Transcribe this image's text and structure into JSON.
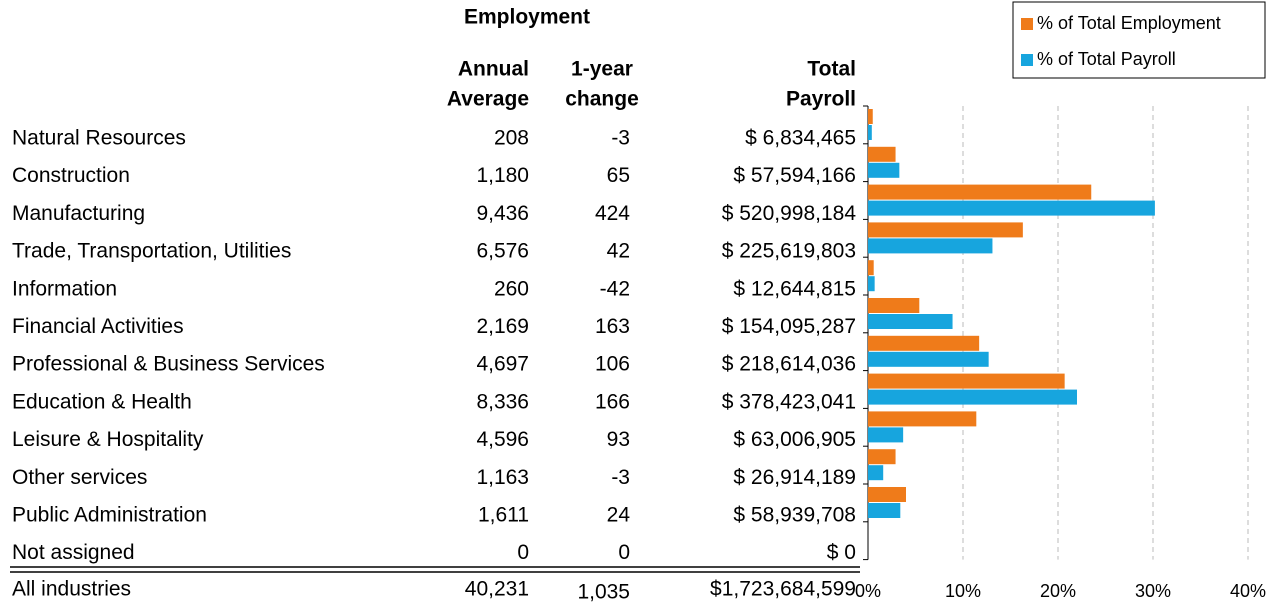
{
  "table": {
    "group_header": "Employment",
    "headers": [
      [
        "Annual",
        "Average"
      ],
      [
        "1-year",
        "change"
      ],
      [
        "Total",
        "Payroll"
      ]
    ],
    "rows": [
      [
        "Natural Resources",
        "208",
        "-3",
        "$ 6,834,465"
      ],
      [
        "Construction",
        "1,180",
        "65",
        "$ 57,594,166"
      ],
      [
        "Manufacturing",
        "9,436",
        "424",
        "$ 520,998,184"
      ],
      [
        "Trade, Transportation, Utilities",
        "6,576",
        "42",
        "$ 225,619,803"
      ],
      [
        "Information",
        "260",
        "-42",
        "$ 12,644,815"
      ],
      [
        "Financial Activities",
        "2,169",
        "163",
        "$ 154,095,287"
      ],
      [
        "Professional & Business Services",
        "4,697",
        "106",
        "$ 218,614,036"
      ],
      [
        "Education & Health",
        "8,336",
        "166",
        "$ 378,423,041"
      ],
      [
        "Leisure & Hospitality",
        "4,596",
        "93",
        "$ 63,006,905"
      ],
      [
        "Other services",
        "1,163",
        "-3",
        "$ 26,914,189"
      ],
      [
        "Public Administration",
        "1,611",
        "24",
        "$ 58,939,708"
      ],
      [
        "Not assigned",
        "0",
        "0",
        "$ 0"
      ]
    ],
    "total": [
      "All industries",
      "40,231",
      "1,035",
      "$1,723,684,599"
    ]
  },
  "chart_data": {
    "type": "bar",
    "orientation": "horizontal",
    "series": [
      {
        "name": "% of Total Employment",
        "color": "#ef7b1a",
        "values": [
          0.5,
          2.9,
          23.5,
          16.3,
          0.6,
          5.4,
          11.7,
          20.7,
          11.4,
          2.9,
          4.0,
          0
        ]
      },
      {
        "name": "% of Total Payroll",
        "color": "#17a5de",
        "values": [
          0.4,
          3.3,
          30.2,
          13.1,
          0.7,
          8.9,
          12.7,
          22.0,
          3.7,
          1.6,
          3.4,
          0
        ]
      }
    ],
    "xlim": [
      0,
      40
    ],
    "xticks": [
      {
        "value": 0,
        "label": "0%"
      },
      {
        "value": 10,
        "label": "10%"
      },
      {
        "value": 20,
        "label": "20%"
      },
      {
        "value": 30,
        "label": "30%"
      },
      {
        "value": 40,
        "label": "40%"
      }
    ],
    "grid": true,
    "legend": "top-right"
  }
}
